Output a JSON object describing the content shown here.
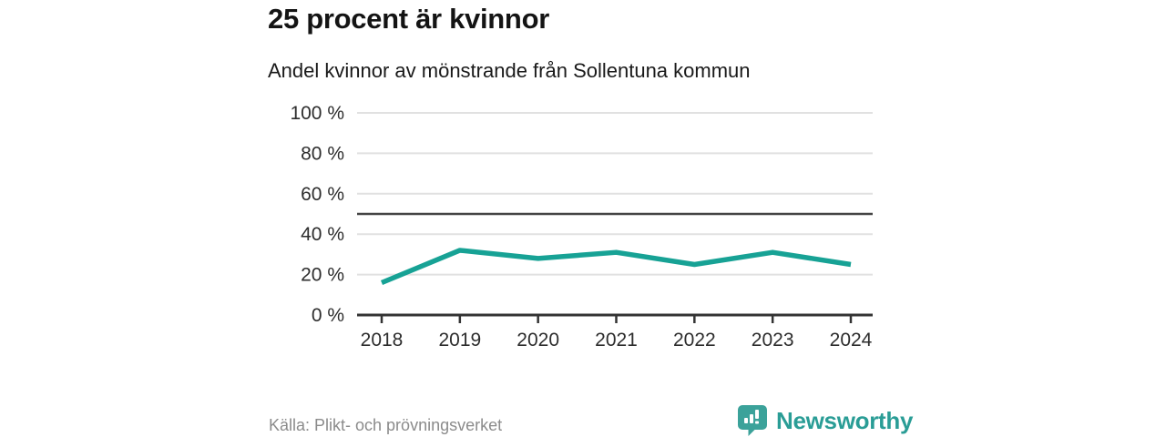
{
  "chart_data": {
    "type": "line",
    "title": "25 procent är kvinnor",
    "subtitle": "Andel kvinnor av mönstrande från Sollentuna kommun",
    "categories": [
      "2018",
      "2019",
      "2020",
      "2021",
      "2022",
      "2023",
      "2024"
    ],
    "values": [
      16,
      32,
      28,
      31,
      25,
      31,
      25
    ],
    "unit": "%",
    "ylim": [
      0,
      100
    ],
    "yticks": [
      0,
      20,
      40,
      60,
      80,
      100
    ],
    "ytick_suffix": " %",
    "reference_line": 50,
    "grid": true,
    "legend": "none",
    "line_color": "#17a295",
    "grid_color": "#e1e1e1",
    "reference_line_color": "#454545",
    "axis_color": "#333333"
  },
  "footer": {
    "source": "Källa: Plikt- och prövningsverket",
    "brand": "Newsworthy",
    "brand_color": "#2a9d96",
    "brand_icon_color": "#3ba29a"
  }
}
